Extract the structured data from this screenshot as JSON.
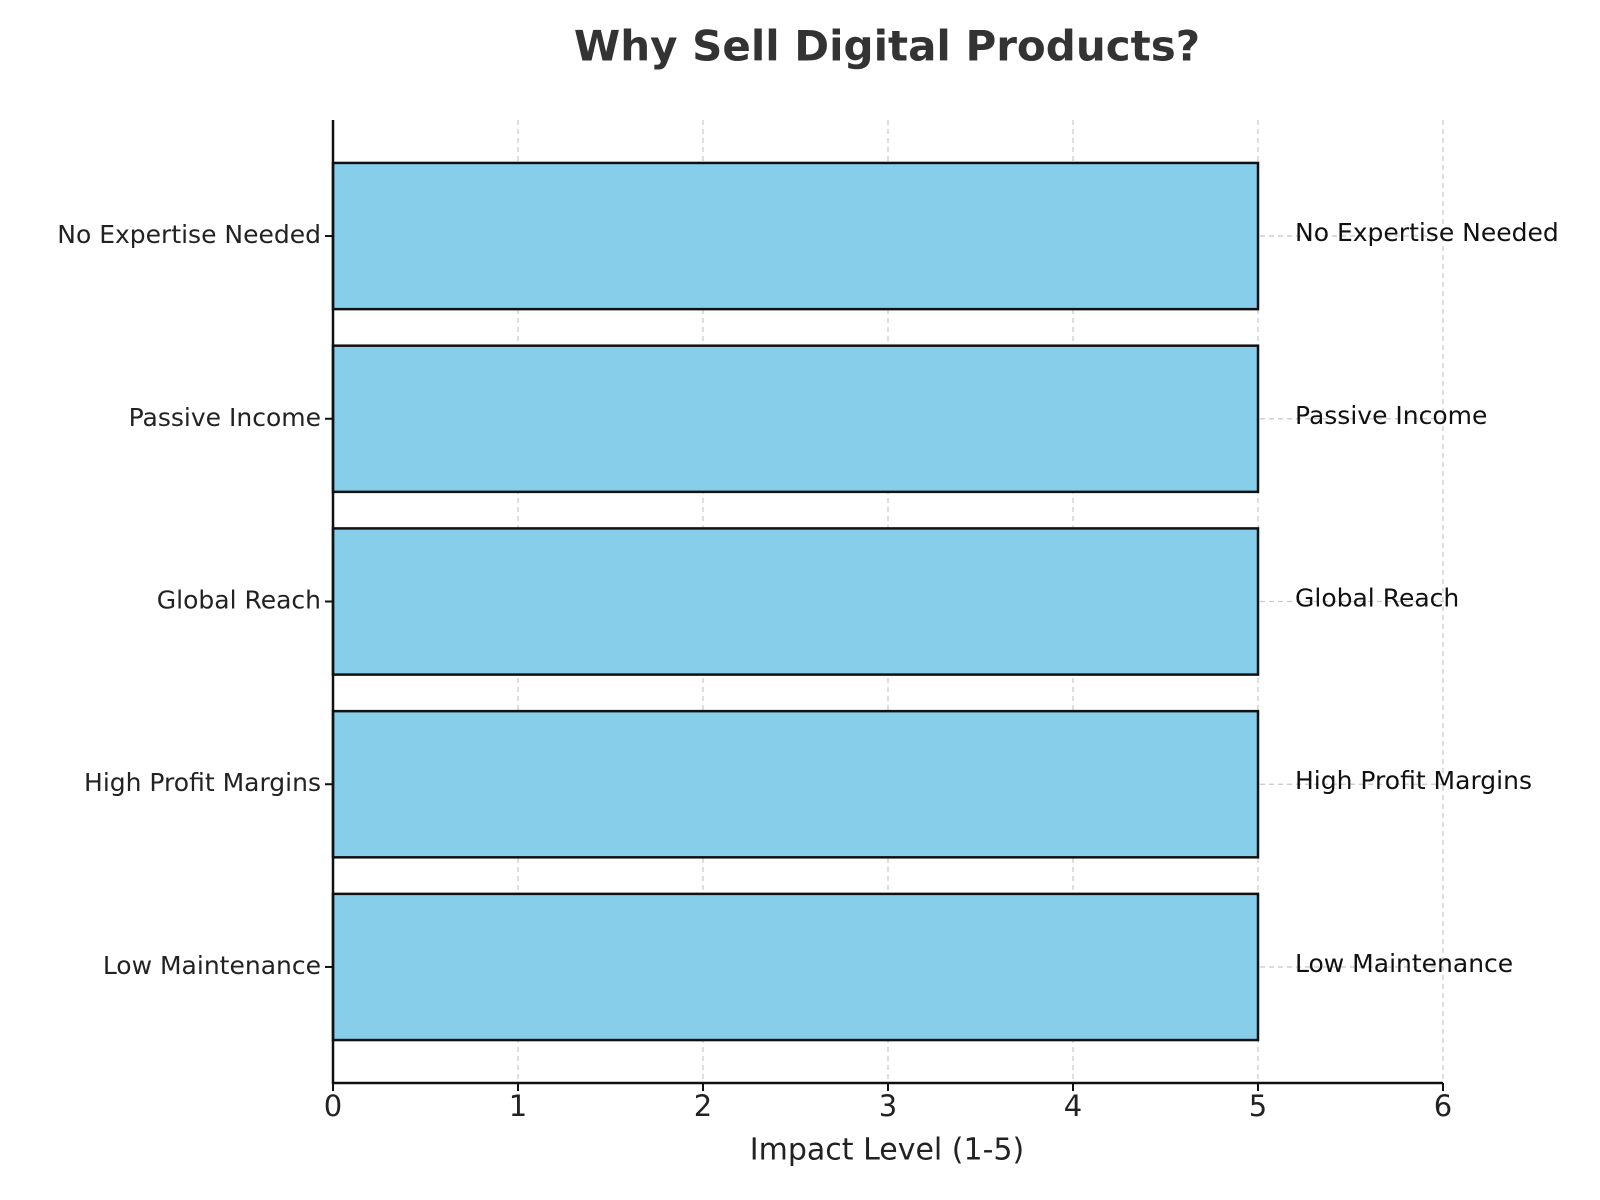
{
  "chart_data": {
    "type": "barh",
    "title": "Why Sell Digital Products?",
    "x_label": "Impact Level (1-5)",
    "categories": [
      "Low Maintenance",
      "High Profit Margins",
      "Global Reach",
      "Passive Income",
      "No Expertise Needed"
    ],
    "values": [
      5,
      5,
      5,
      5,
      5
    ],
    "color": "#87ceeb",
    "xlim": [
      0,
      6
    ],
    "xticks": [
      0,
      1,
      2,
      3,
      4,
      5,
      6
    ],
    "grid": true
  }
}
